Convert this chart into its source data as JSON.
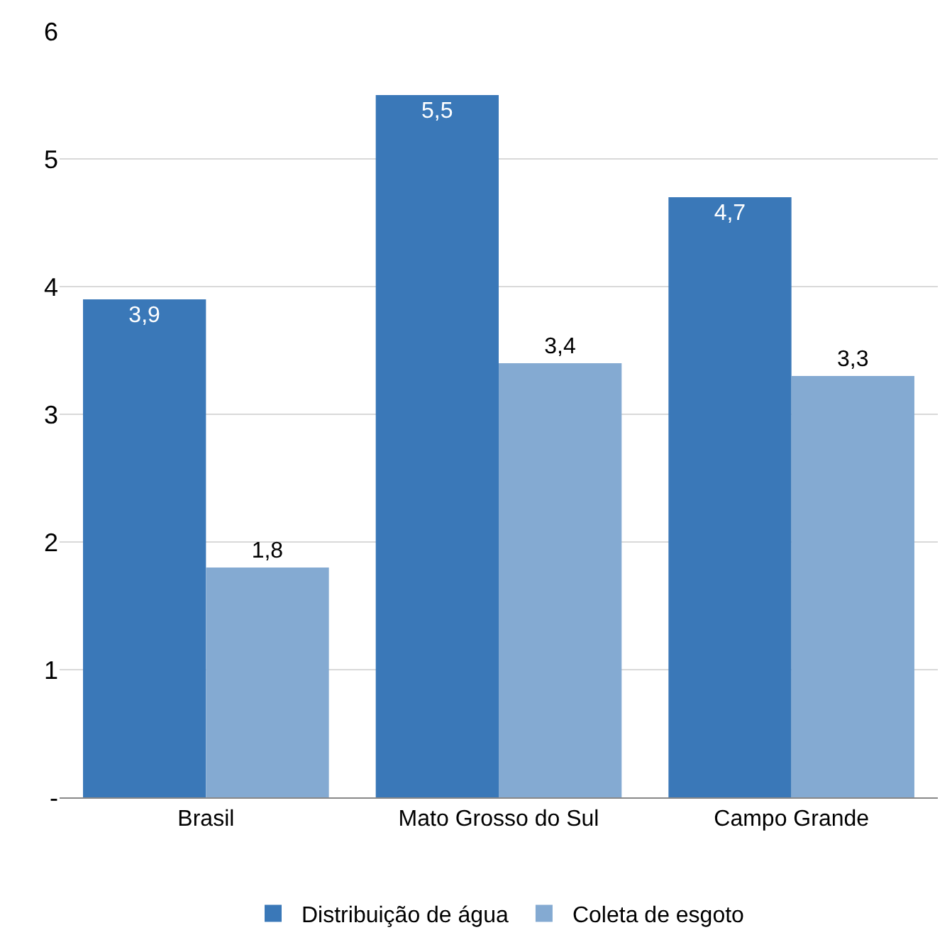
{
  "chart_data": {
    "type": "bar",
    "categories": [
      "Brasil",
      "Mato Grosso do Sul",
      "Campo Grande"
    ],
    "series": [
      {
        "name": "Distribuição de água",
        "color": "#3a78b8",
        "values": [
          3.9,
          5.5,
          4.7
        ],
        "value_labels": [
          "3,9",
          "5,5",
          "4,7"
        ]
      },
      {
        "name": "Coleta de esgoto",
        "color": "#84aad2",
        "values": [
          1.8,
          3.4,
          3.3
        ],
        "value_labels": [
          "1,8",
          "3,4",
          "3,3"
        ]
      }
    ],
    "ylim": [
      0,
      6
    ],
    "yticks": [
      {
        "value": 0,
        "label": "-"
      },
      1,
      2,
      3,
      4,
      5,
      6
    ],
    "grid": "y",
    "legend": "bottom"
  }
}
